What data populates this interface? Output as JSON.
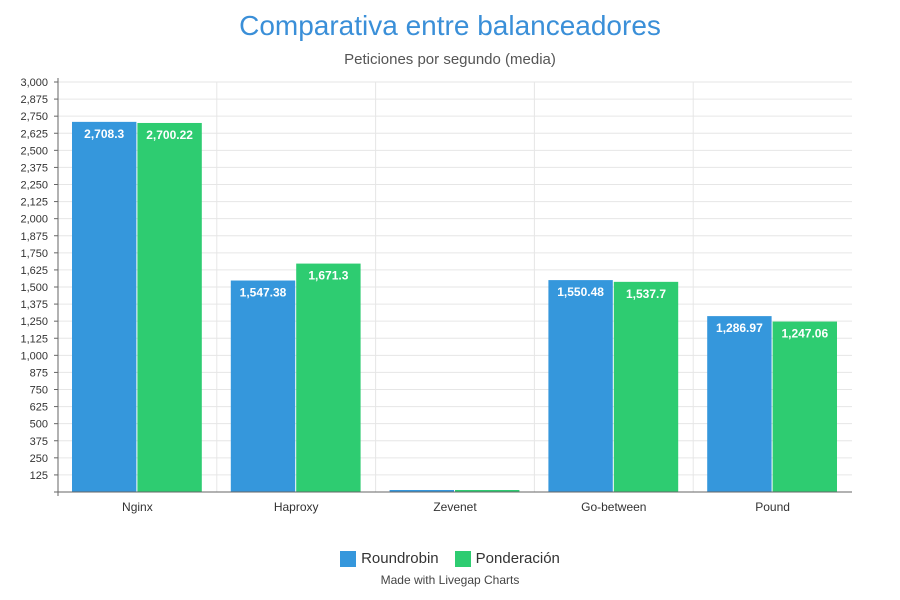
{
  "chart_data": {
    "type": "bar",
    "title": "Comparativa entre balanceadores",
    "subtitle": "Peticiones por segundo (media)",
    "categories": [
      "Nginx",
      "Haproxy",
      "Zevenet",
      "Go-between",
      "Pound"
    ],
    "series": [
      {
        "name": "Roundrobin",
        "color": "#3597dc",
        "values": [
          2708.3,
          1547.38,
          0,
          1550.48,
          1286.97
        ],
        "labels": [
          "2,708.3",
          "1,547.38",
          "",
          "1,550.48",
          "1,286.97"
        ]
      },
      {
        "name": "Ponderación",
        "color": "#2ecc71",
        "values": [
          2700.22,
          1671.3,
          0,
          1537.7,
          1247.06
        ],
        "labels": [
          "2,700.22",
          "1,671.3",
          "",
          "1,537.7",
          "1,247.06"
        ]
      }
    ],
    "ylim": [
      0,
      3000
    ],
    "yticks": [
      "125",
      "250",
      "375",
      "500",
      "625",
      "750",
      "875",
      "1,000",
      "1,125",
      "1,250",
      "1,375",
      "1,500",
      "1,625",
      "1,750",
      "1,875",
      "2,000",
      "2,125",
      "2,250",
      "2,375",
      "2,500",
      "2,625",
      "2,750",
      "2,875",
      "3,000"
    ],
    "ytick_values": [
      125,
      250,
      375,
      500,
      625,
      750,
      875,
      1000,
      1125,
      1250,
      1375,
      1500,
      1625,
      1750,
      1875,
      2000,
      2125,
      2250,
      2375,
      2500,
      2625,
      2750,
      2875,
      3000
    ],
    "grid": true,
    "legend_position": "bottom-center"
  },
  "credit": "Made with Livegap Charts"
}
